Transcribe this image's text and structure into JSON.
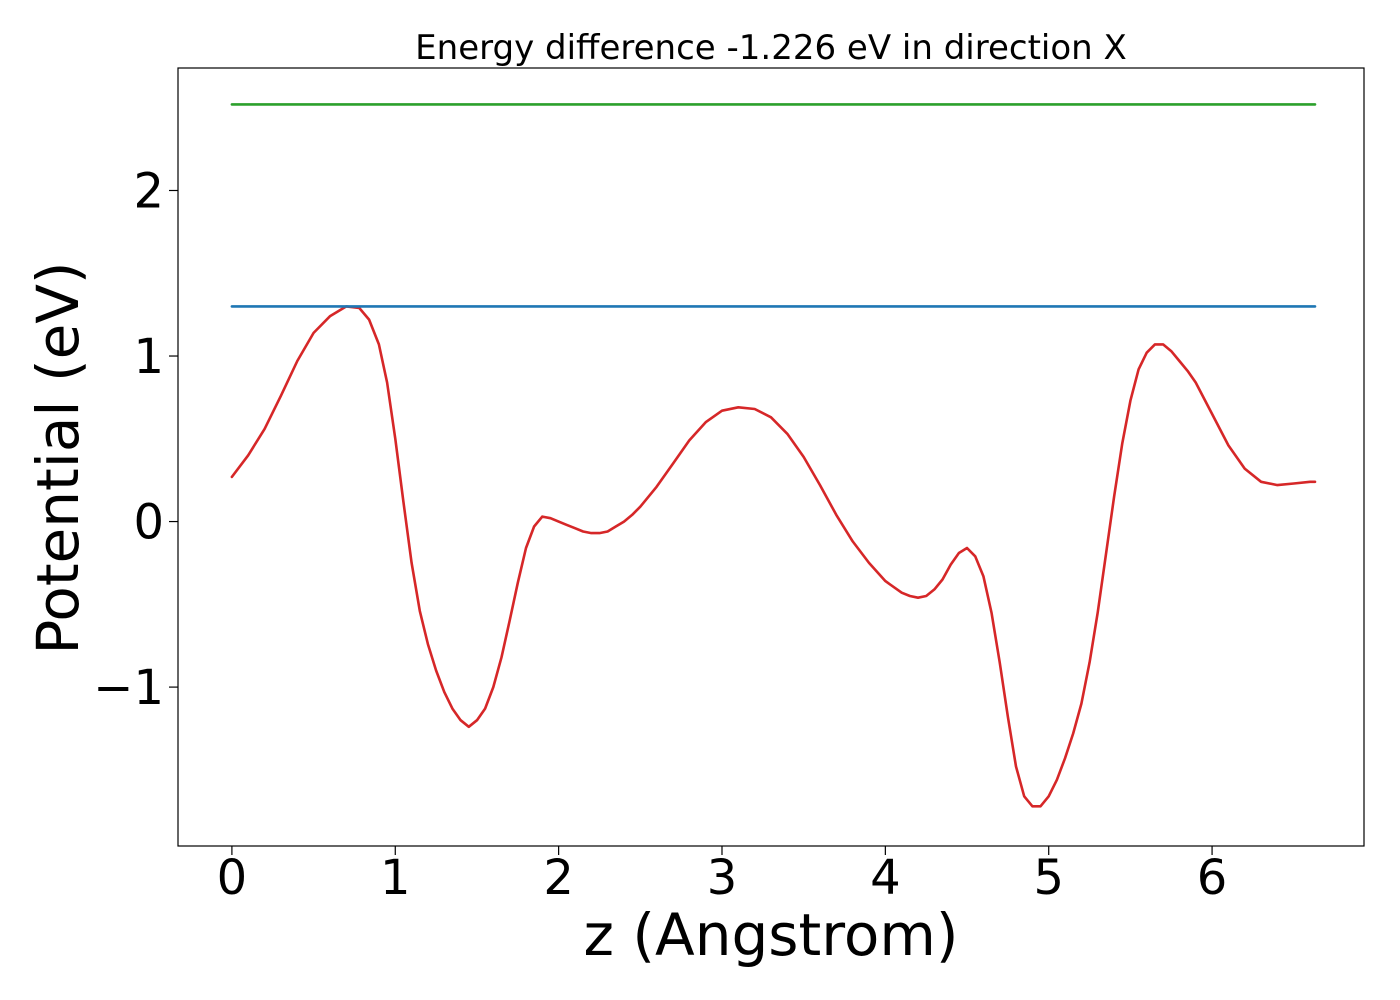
{
  "chart_data": {
    "type": "line",
    "title": "Energy difference -1.226 eV in direction X",
    "xlabel": "z (Angstrom)",
    "ylabel": "Potential (eV)",
    "xlim": [
      -0.33,
      6.93
    ],
    "ylim": [
      -1.96,
      2.74
    ],
    "xticks": [
      0,
      1,
      2,
      3,
      4,
      5,
      6
    ],
    "xtick_labels": [
      "0",
      "1",
      "2",
      "3",
      "4",
      "5",
      "6"
    ],
    "yticks": [
      -1,
      0,
      1,
      2
    ],
    "ytick_labels": [
      "−1",
      "0",
      "1",
      "2"
    ],
    "grid": false,
    "legend": "none",
    "series": [
      {
        "color": "#d62728",
        "x": [
          0,
          0.1,
          0.2,
          0.3,
          0.4,
          0.5,
          0.6,
          0.7,
          0.78,
          0.84,
          0.9,
          0.95,
          1.0,
          1.05,
          1.1,
          1.15,
          1.2,
          1.25,
          1.3,
          1.35,
          1.4,
          1.45,
          1.5,
          1.55,
          1.6,
          1.65,
          1.7,
          1.75,
          1.8,
          1.85,
          1.9,
          1.95,
          2.0,
          2.05,
          2.1,
          2.15,
          2.2,
          2.25,
          2.3,
          2.35,
          2.4,
          2.45,
          2.5,
          2.55,
          2.6,
          2.7,
          2.8,
          2.9,
          3.0,
          3.1,
          3.2,
          3.3,
          3.4,
          3.5,
          3.6,
          3.7,
          3.8,
          3.9,
          4.0,
          4.1,
          4.15,
          4.2,
          4.25,
          4.3,
          4.35,
          4.4,
          4.45,
          4.5,
          4.55,
          4.6,
          4.65,
          4.7,
          4.75,
          4.8,
          4.85,
          4.9,
          4.95,
          5.0,
          5.05,
          5.1,
          5.15,
          5.2,
          5.25,
          5.3,
          5.35,
          5.4,
          5.45,
          5.5,
          5.55,
          5.6,
          5.65,
          5.7,
          5.75,
          5.8,
          5.85,
          5.9,
          6.0,
          6.1,
          6.2,
          6.3,
          6.4,
          6.5,
          6.6,
          6.63
        ],
        "y": [
          0.27,
          0.4,
          0.56,
          0.76,
          0.97,
          1.14,
          1.24,
          1.3,
          1.29,
          1.22,
          1.07,
          0.84,
          0.5,
          0.12,
          -0.25,
          -0.54,
          -0.74,
          -0.9,
          -1.03,
          -1.13,
          -1.2,
          -1.24,
          -1.2,
          -1.13,
          -1.0,
          -0.82,
          -0.6,
          -0.37,
          -0.16,
          -0.03,
          0.03,
          0.02,
          0.0,
          -0.02,
          -0.04,
          -0.06,
          -0.07,
          -0.07,
          -0.06,
          -0.03,
          0.0,
          0.04,
          0.09,
          0.15,
          0.21,
          0.35,
          0.49,
          0.6,
          0.67,
          0.69,
          0.68,
          0.63,
          0.53,
          0.39,
          0.22,
          0.04,
          -0.12,
          -0.25,
          -0.36,
          -0.43,
          -0.45,
          -0.46,
          -0.45,
          -0.41,
          -0.35,
          -0.26,
          -0.19,
          -0.16,
          -0.21,
          -0.33,
          -0.55,
          -0.85,
          -1.18,
          -1.48,
          -1.66,
          -1.72,
          -1.72,
          -1.66,
          -1.56,
          -1.43,
          -1.28,
          -1.1,
          -0.85,
          -0.55,
          -0.2,
          0.15,
          0.47,
          0.73,
          0.92,
          1.02,
          1.07,
          1.07,
          1.03,
          0.97,
          0.91,
          0.84,
          0.65,
          0.46,
          0.32,
          0.24,
          0.22,
          0.23,
          0.24,
          0.24
        ]
      },
      {
        "color": "#1f77b4",
        "x": [
          0,
          6.63
        ],
        "y": [
          1.3,
          1.3
        ]
      },
      {
        "color": "#2ca02c",
        "x": [
          0,
          6.63
        ],
        "y": [
          2.52,
          2.52
        ]
      }
    ]
  }
}
